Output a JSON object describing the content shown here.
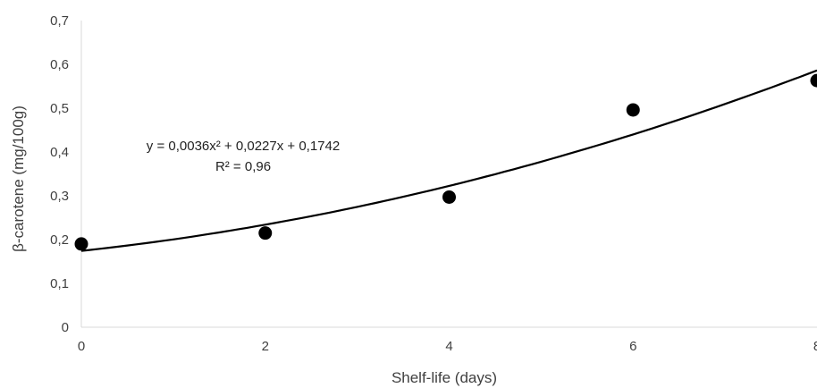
{
  "chart_data": {
    "type": "scatter",
    "title": "",
    "xlabel": "Shelf-life (days)",
    "ylabel": "β-carotene (mg/100g)",
    "xlim": [
      0,
      8
    ],
    "ylim": [
      0,
      0.7
    ],
    "x_ticks": [
      "0",
      "2",
      "4",
      "6",
      "8"
    ],
    "y_ticks": [
      "0",
      "0,1",
      "0,2",
      "0,3",
      "0,4",
      "0,5",
      "0,6",
      "0,7"
    ],
    "grid": false,
    "series": [
      {
        "x": [
          0,
          2,
          4,
          6,
          8
        ],
        "y": [
          0.19,
          0.215,
          0.297,
          0.496,
          0.563
        ],
        "color": "#000000"
      }
    ],
    "trendline": {
      "type": "polynomial",
      "coefficients": [
        0.0036,
        0.0227,
        0.1742
      ],
      "color": "#000000"
    },
    "annotations": {
      "equation": "y = 0,0036x² + 0,0227x + 0,1742",
      "r_squared": "R² = 0,96"
    }
  }
}
